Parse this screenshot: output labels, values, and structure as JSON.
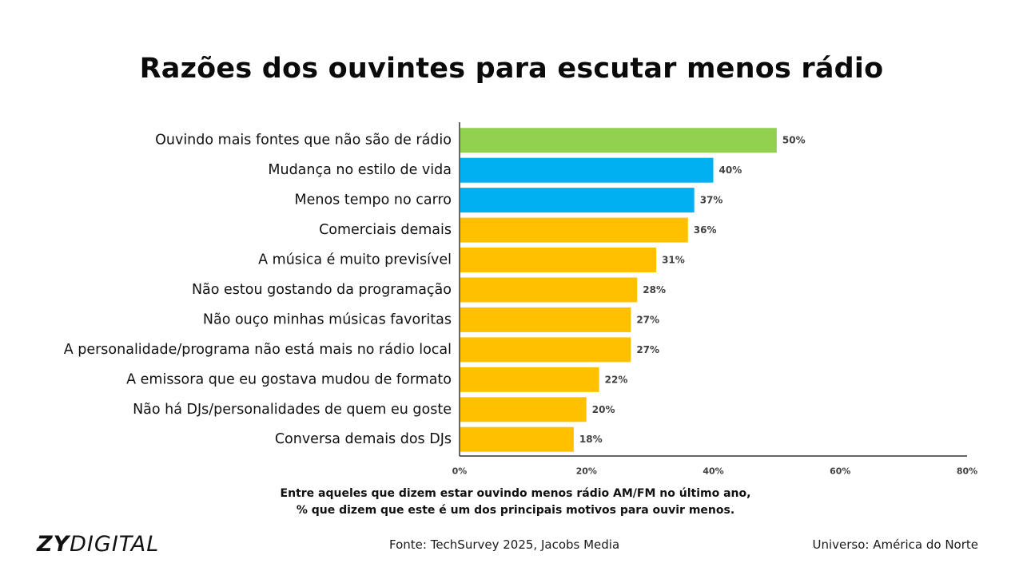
{
  "colors": {
    "green": "#92d050",
    "blue": "#00b0f0",
    "yellow": "#ffc000",
    "axis": "#333333",
    "value_label": "#404040"
  },
  "chart_data": {
    "type": "bar",
    "orientation": "horizontal",
    "title": "Razões dos ouvintes para escutar menos rádio",
    "subtitle_lines": [
      "Entre aqueles que dizem estar ouvindo menos rádio AM/FM no último ano,",
      "% que dizem que este é um dos principais motivos para ouvir menos."
    ],
    "categories": [
      "Ouvindo mais fontes que não são de rádio",
      "Mudança no estilo de vida",
      "Menos tempo no carro",
      "Comerciais demais",
      "A música é muito previsível",
      "Não estou gostando da programação",
      "Não ouço minhas músicas favoritas",
      "A personalidade/programa não está mais no rádio local",
      "A emissora que eu gostava mudou de formato",
      "Não há DJs/personalidades de quem eu goste",
      "Conversa demais dos DJs"
    ],
    "values": [
      50,
      40,
      37,
      36,
      31,
      28,
      27,
      27,
      22,
      20,
      18
    ],
    "bar_colors": [
      "green",
      "blue",
      "blue",
      "yellow",
      "yellow",
      "yellow",
      "yellow",
      "yellow",
      "yellow",
      "yellow",
      "yellow"
    ],
    "value_suffix": "%",
    "xlim": [
      0,
      80
    ],
    "xticks": [
      0,
      20,
      40,
      60,
      80
    ],
    "xtick_labels": [
      "0%",
      "20%",
      "40%",
      "60%",
      "80%"
    ],
    "grid": false,
    "legend": "none"
  },
  "footer": {
    "logo_zy": "ZY",
    "logo_digital": "DIGITAL",
    "source": "Fonte: TechSurvey 2025, Jacobs Media",
    "universe": "Universo: América do Norte"
  }
}
